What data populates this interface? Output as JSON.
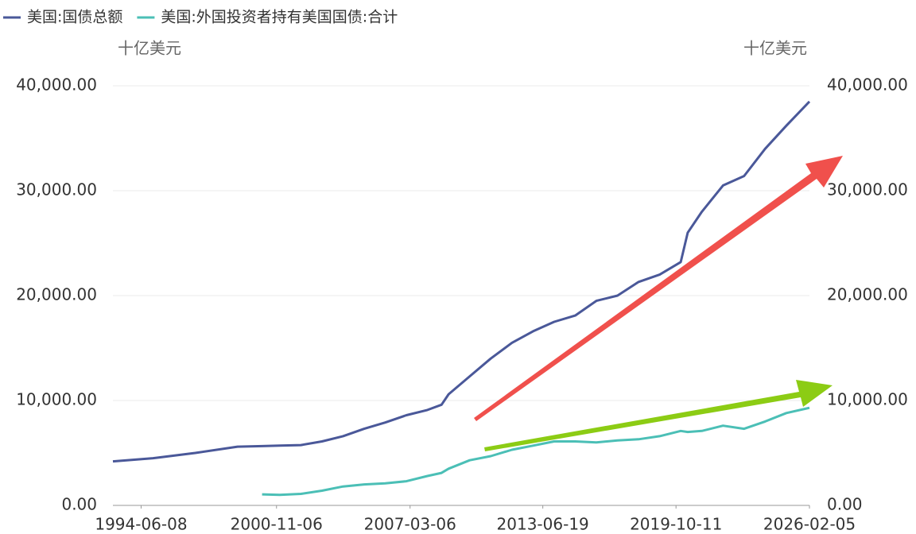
{
  "chart_data": {
    "type": "line",
    "ylabel": "十亿美元",
    "y2label": "十亿美元",
    "x": [
      "1993-02-05",
      "1995-01-01",
      "1997-01-01",
      "1999-01-01",
      "2000-03-01",
      "2001-01-01",
      "2002-01-01",
      "2003-01-01",
      "2004-01-01",
      "2005-01-01",
      "2006-01-01",
      "2007-01-01",
      "2008-01-01",
      "2008-09-01",
      "2009-01-01",
      "2010-01-01",
      "2011-01-01",
      "2012-01-01",
      "2013-01-01",
      "2014-01-01",
      "2015-01-01",
      "2016-01-01",
      "2017-01-01",
      "2018-01-01",
      "2019-01-01",
      "2020-01-01",
      "2020-05-01",
      "2021-01-01",
      "2022-01-01",
      "2023-01-01",
      "2024-01-01",
      "2025-01-01",
      "2026-02-05"
    ],
    "series": [
      {
        "name": "美国:国债总额",
        "color": "#4a5899",
        "values": [
          4200,
          4500,
          5000,
          5600,
          5650,
          5700,
          5750,
          6100,
          6600,
          7300,
          7900,
          8600,
          9100,
          9600,
          10600,
          12300,
          14000,
          15500,
          16600,
          17500,
          18100,
          19500,
          20000,
          21300,
          22000,
          23200,
          26000,
          28000,
          30500,
          31400,
          34000,
          36200,
          38500
        ]
      },
      {
        "name": "美国:外国投资者持有美国国债:合计",
        "color": "#4bbfb6",
        "axis": "y2",
        "values": [
          null,
          null,
          null,
          null,
          1050,
          1000,
          1100,
          1400,
          1800,
          2000,
          2100,
          2300,
          2800,
          3100,
          3500,
          4300,
          4700,
          5300,
          5700,
          6100,
          6100,
          6000,
          6200,
          6300,
          6600,
          7100,
          7000,
          7100,
          7600,
          7300,
          8000,
          8800,
          9300
        ]
      }
    ],
    "xlim": [
      "1993-02-05",
      "2026-02-05"
    ],
    "xticks": [
      "1994-06-08",
      "2000-11-06",
      "2007-03-06",
      "2013-06-19",
      "2019-10-11",
      "2026-02-05"
    ],
    "ylim": [
      0,
      40000
    ],
    "yticks": [
      {
        "value": 0,
        "label": "0.00"
      },
      {
        "value": 10000,
        "label": "10,000.00"
      },
      {
        "value": 20000,
        "label": "20,000.00"
      },
      {
        "value": 30000,
        "label": "30,000.00"
      },
      {
        "value": 40000,
        "label": "40,000.00"
      }
    ],
    "y2lim": [
      0,
      40000
    ],
    "y2ticks": [
      {
        "value": 0,
        "label": "0.00"
      },
      {
        "value": 10000,
        "label": "10,000.00"
      },
      {
        "value": 20000,
        "label": "20,000.00"
      },
      {
        "value": 30000,
        "label": "30,000.00"
      },
      {
        "value": 40000,
        "label": "40,000.00"
      }
    ],
    "grid": true,
    "legend": "top-left"
  }
}
